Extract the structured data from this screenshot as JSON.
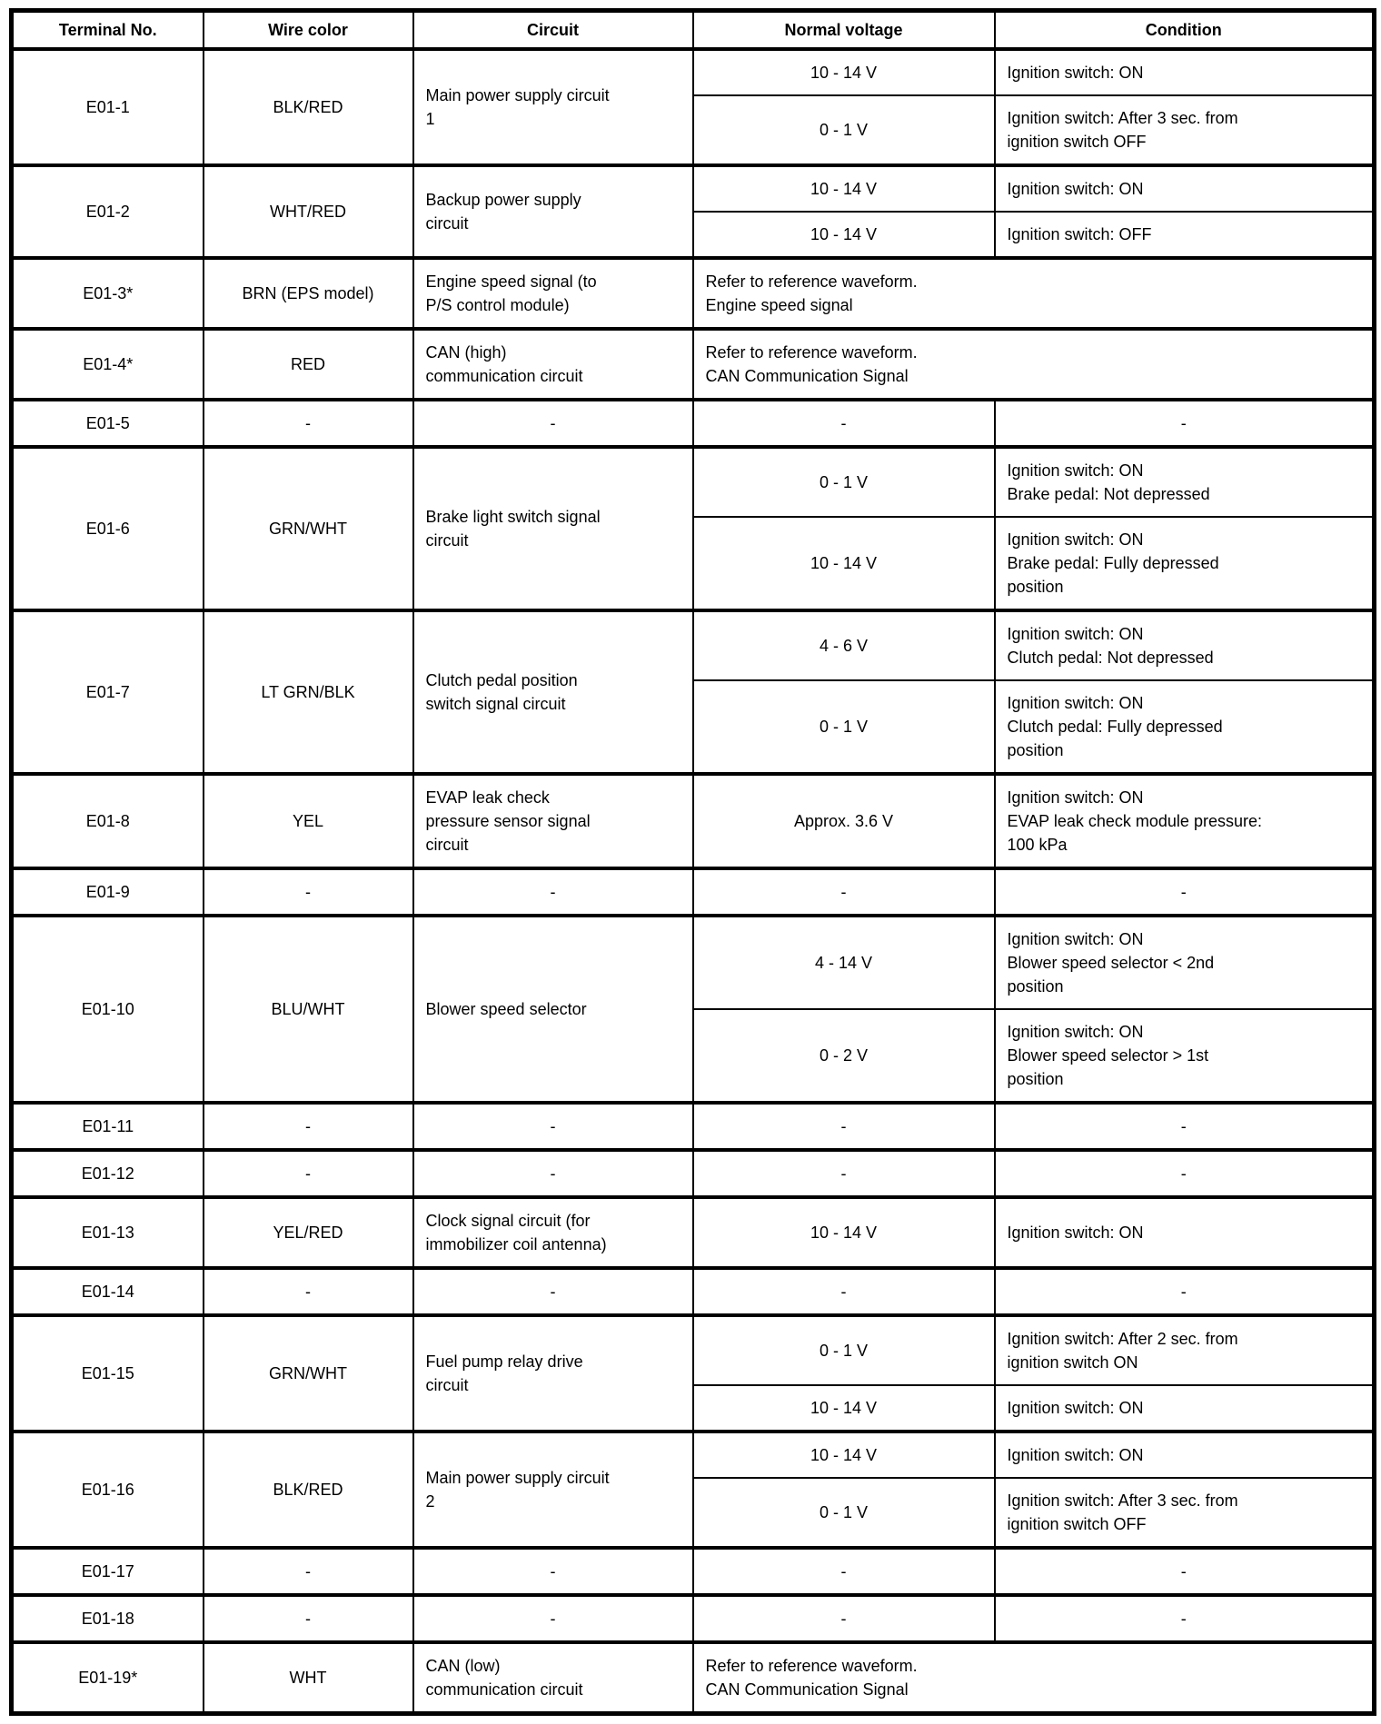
{
  "colors": {
    "background": "#ffffff",
    "text": "#000000",
    "border": "#000000"
  },
  "table": {
    "columns": [
      "Terminal No.",
      "Wire color",
      "Circuit",
      "Normal voltage",
      "Condition"
    ],
    "rows": [
      {
        "terminal": "E01-1",
        "wire": "BLK/RED",
        "circuit": "Main power supply circuit\n1",
        "checks": [
          {
            "voltage": "10 - 14 V",
            "condition": "Ignition switch: ON"
          },
          {
            "voltage": "0 - 1 V",
            "condition": "Ignition switch: After 3 sec. from\nignition switch OFF"
          }
        ]
      },
      {
        "terminal": "E01-2",
        "wire": "WHT/RED",
        "circuit": "Backup power supply\ncircuit",
        "checks": [
          {
            "voltage": "10 - 14 V",
            "condition": "Ignition switch: ON"
          },
          {
            "voltage": "10 - 14 V",
            "condition": "Ignition switch: OFF"
          }
        ]
      },
      {
        "terminal": "E01-3*",
        "wire": "BRN (EPS model)",
        "circuit": "Engine speed signal (to\nP/S control module)",
        "waveform": "Refer to reference waveform.\nEngine speed signal"
      },
      {
        "terminal": "E01-4*",
        "wire": "RED",
        "circuit": "CAN (high)\ncommunication circuit",
        "waveform": "Refer to reference waveform.\nCAN Communication Signal"
      },
      {
        "terminal": "E01-5",
        "wire": "-",
        "circuit": "-",
        "checks": [
          {
            "voltage": "-",
            "condition": "-"
          }
        ]
      },
      {
        "terminal": "E01-6",
        "wire": "GRN/WHT",
        "circuit": "Brake light switch signal\ncircuit",
        "checks": [
          {
            "voltage": "0 - 1 V",
            "condition": "Ignition switch: ON\nBrake pedal: Not depressed"
          },
          {
            "voltage": "10 - 14 V",
            "condition": "Ignition switch: ON\nBrake pedal: Fully depressed\nposition"
          }
        ]
      },
      {
        "terminal": "E01-7",
        "wire": "LT GRN/BLK",
        "circuit": "Clutch pedal position\nswitch signal circuit",
        "checks": [
          {
            "voltage": "4 - 6 V",
            "condition": "Ignition switch: ON\nClutch pedal: Not depressed"
          },
          {
            "voltage": "0 - 1 V",
            "condition": "Ignition switch: ON\nClutch pedal: Fully depressed\nposition"
          }
        ]
      },
      {
        "terminal": "E01-8",
        "wire": "YEL",
        "circuit": "EVAP leak check\npressure sensor signal\ncircuit",
        "checks": [
          {
            "voltage": "Approx. 3.6 V",
            "condition": "Ignition switch: ON\nEVAP leak check module pressure:\n100 kPa"
          }
        ]
      },
      {
        "terminal": "E01-9",
        "wire": "-",
        "circuit": "-",
        "checks": [
          {
            "voltage": "-",
            "condition": "-"
          }
        ]
      },
      {
        "terminal": "E01-10",
        "wire": "BLU/WHT",
        "circuit": "Blower speed selector",
        "checks": [
          {
            "voltage": "4 - 14 V",
            "condition": "Ignition switch: ON\nBlower speed selector < 2nd\nposition"
          },
          {
            "voltage": "0 - 2 V",
            "condition": "Ignition switch: ON\nBlower speed selector > 1st\nposition"
          }
        ]
      },
      {
        "terminal": "E01-11",
        "wire": "-",
        "circuit": "-",
        "checks": [
          {
            "voltage": "-",
            "condition": "-"
          }
        ]
      },
      {
        "terminal": "E01-12",
        "wire": "-",
        "circuit": "-",
        "checks": [
          {
            "voltage": "-",
            "condition": "-"
          }
        ]
      },
      {
        "terminal": "E01-13",
        "wire": "YEL/RED",
        "circuit": "Clock signal circuit (for\nimmobilizer coil antenna)",
        "checks": [
          {
            "voltage": "10 - 14 V",
            "condition": "Ignition switch: ON"
          }
        ]
      },
      {
        "terminal": "E01-14",
        "wire": "-",
        "circuit": "-",
        "checks": [
          {
            "voltage": "-",
            "condition": "-"
          }
        ]
      },
      {
        "terminal": "E01-15",
        "wire": "GRN/WHT",
        "circuit": "Fuel pump relay drive\ncircuit",
        "checks": [
          {
            "voltage": "0 - 1 V",
            "condition": "Ignition switch: After 2 sec. from\nignition switch ON"
          },
          {
            "voltage": "10 - 14 V",
            "condition": "Ignition switch: ON"
          }
        ]
      },
      {
        "terminal": "E01-16",
        "wire": "BLK/RED",
        "circuit": "Main power supply circuit\n2",
        "checks": [
          {
            "voltage": "10 - 14 V",
            "condition": "Ignition switch: ON"
          },
          {
            "voltage": "0 - 1 V",
            "condition": "Ignition switch: After 3 sec. from\nignition switch OFF"
          }
        ]
      },
      {
        "terminal": "E01-17",
        "wire": "-",
        "circuit": "-",
        "checks": [
          {
            "voltage": "-",
            "condition": "-"
          }
        ]
      },
      {
        "terminal": "E01-18",
        "wire": "-",
        "circuit": "-",
        "checks": [
          {
            "voltage": "-",
            "condition": "-"
          }
        ]
      },
      {
        "terminal": "E01-19*",
        "wire": "WHT",
        "circuit": "CAN (low)\ncommunication circuit",
        "waveform": "Refer to reference waveform.\nCAN Communication Signal"
      }
    ]
  }
}
